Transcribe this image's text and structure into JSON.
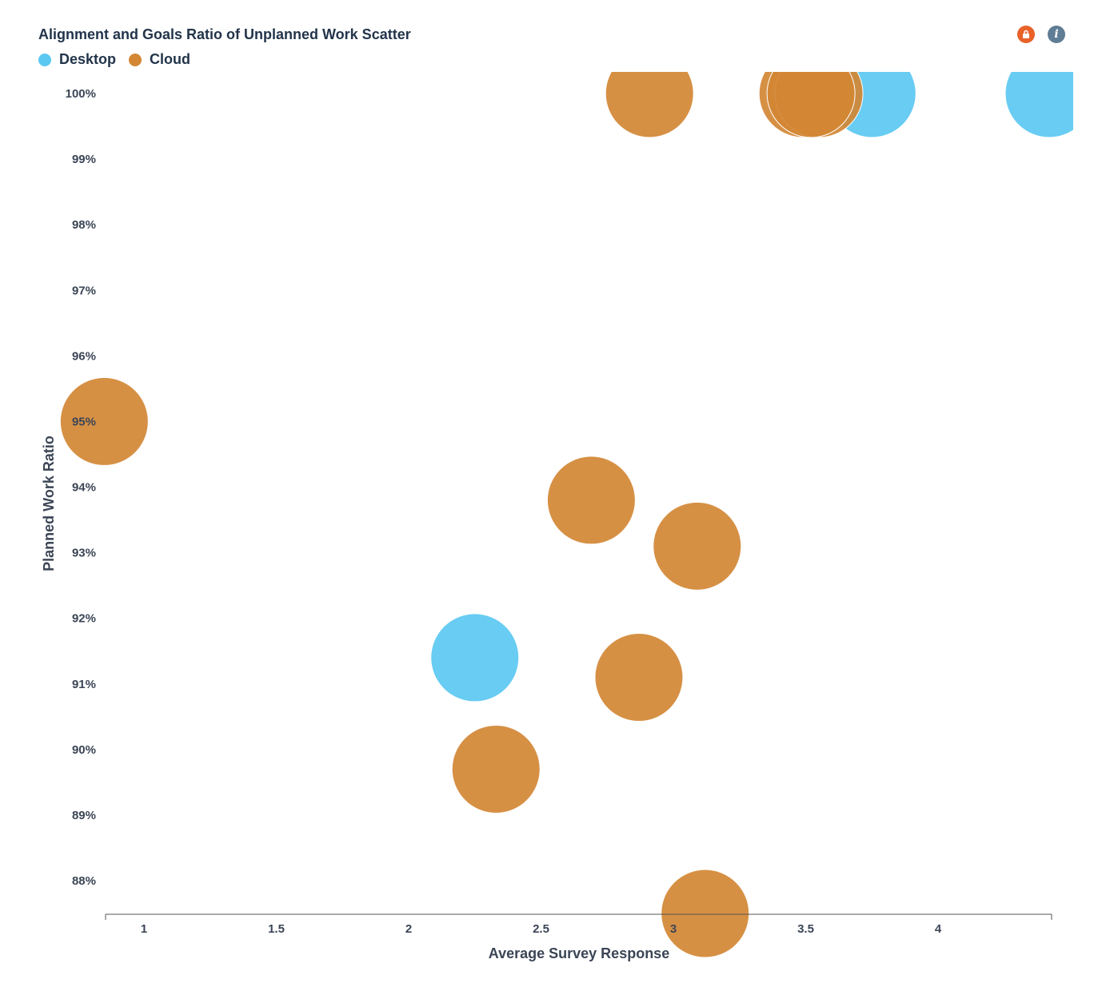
{
  "header": {
    "title": "Alignment and Goals Ratio of Unplanned Work Scatter",
    "alert_icon": "alert-icon",
    "info_icon": "info-icon",
    "info_glyph": "i"
  },
  "chart_data": {
    "type": "scatter",
    "title": "Alignment and Goals Ratio of Unplanned Work Scatter",
    "xlabel": "Average Survey Response",
    "ylabel": "Planned Work Ratio",
    "xlim": [
      0.85,
      4.42
    ],
    "ylim": [
      87.5,
      100.3
    ],
    "x_ticks": [
      1,
      1.5,
      2,
      2.5,
      3,
      3.5,
      4
    ],
    "x_tick_labels": [
      "1",
      "1.5",
      "2",
      "2.5",
      "3",
      "3.5",
      "4"
    ],
    "y_ticks": [
      88,
      89,
      90,
      91,
      92,
      93,
      94,
      95,
      96,
      97,
      98,
      99,
      100
    ],
    "y_tick_labels": [
      "88%",
      "89%",
      "90%",
      "91%",
      "92%",
      "93%",
      "94%",
      "95%",
      "96%",
      "97%",
      "98%",
      "99%",
      "100%"
    ],
    "legend_position": "top-left",
    "series": [
      {
        "name": "Desktop",
        "color": "#5bc8f2",
        "points": [
          {
            "x": 3.75,
            "y": 100
          },
          {
            "x": 4.42,
            "y": 100
          },
          {
            "x": 2.25,
            "y": 91.4
          }
        ]
      },
      {
        "name": "Cloud",
        "color": "#d38734",
        "points": [
          {
            "x": 2.91,
            "y": 100
          },
          {
            "x": 3.49,
            "y": 100
          },
          {
            "x": 3.55,
            "y": 100
          },
          {
            "x": 3.52,
            "y": 100
          },
          {
            "x": 0.85,
            "y": 95
          },
          {
            "x": 2.69,
            "y": 93.8
          },
          {
            "x": 3.09,
            "y": 93.1
          },
          {
            "x": 2.87,
            "y": 91.1
          },
          {
            "x": 2.33,
            "y": 89.7
          },
          {
            "x": 3.12,
            "y": 87.5
          }
        ]
      }
    ]
  }
}
